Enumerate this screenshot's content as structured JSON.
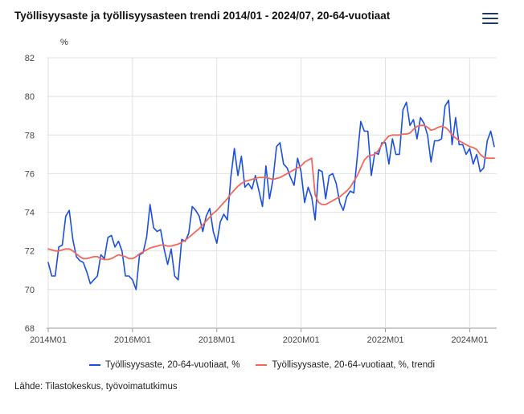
{
  "page": {
    "title": "Työllisyysaste ja työllisyysasteen trendi 2014/01 - 2024/07, 20-64-vuotiaat",
    "menu_icon": "hamburger-menu-icon",
    "source": "Lähde: Tilastokeskus, työvoimatutkimus"
  },
  "chart_data": {
    "type": "line",
    "title": "Työllisyysaste ja työllisyysasteen trendi 2014/01 - 2024/07, 20-64-vuotiaat",
    "ylabel": "%",
    "ylim": [
      68,
      82
    ],
    "yticks": [
      68,
      70,
      72,
      74,
      76,
      78,
      80,
      82
    ],
    "x_start": "2014M01",
    "x_end": "2024M07",
    "xticks": [
      "2014M01",
      "2016M01",
      "2018M01",
      "2020M01",
      "2022M01",
      "2024M01"
    ],
    "grid": true,
    "legend_position": "bottom",
    "series": [
      {
        "name": "Työllisyysaste, 20-64-vuotiaat, %",
        "color": "#1a4fe0",
        "values": [
          71.4,
          70.7,
          70.7,
          72.2,
          72.3,
          73.8,
          74.1,
          72.6,
          71.7,
          71.5,
          71.4,
          70.9,
          70.3,
          70.5,
          70.7,
          71.8,
          71.6,
          72.7,
          72.8,
          72.2,
          72.5,
          72.0,
          70.7,
          70.7,
          70.5,
          70.0,
          71.8,
          71.9,
          72.7,
          74.4,
          73.2,
          73.0,
          73.1,
          72.1,
          71.3,
          72.1,
          70.7,
          70.5,
          72.6,
          72.5,
          72.9,
          74.3,
          74.1,
          73.8,
          73.0,
          73.8,
          74.2,
          73.0,
          72.4,
          73.5,
          73.9,
          73.6,
          75.8,
          77.3,
          75.9,
          76.9,
          75.3,
          75.5,
          75.2,
          75.9,
          75.1,
          74.3,
          76.4,
          74.7,
          75.7,
          77.4,
          77.6,
          76.5,
          76.3,
          75.8,
          75.4,
          76.8,
          76.1,
          74.5,
          75.3,
          74.8,
          73.6,
          76.2,
          76.1,
          74.7,
          75.9,
          76.0,
          75.5,
          74.5,
          74.1,
          74.8,
          75.1,
          75.0,
          76.9,
          78.7,
          78.2,
          78.2,
          75.9,
          77.1,
          77.0,
          77.6,
          77.6,
          76.5,
          77.8,
          77.0,
          77.0,
          79.3,
          79.7,
          78.5,
          78.8,
          77.8,
          78.9,
          78.6,
          78.0,
          76.6,
          77.7,
          77.7,
          77.8,
          79.5,
          79.8,
          77.5,
          78.9,
          77.5,
          77.5,
          77.0,
          77.3,
          76.5,
          77.0,
          76.1,
          76.3,
          77.7,
          78.2,
          77.4
        ]
      },
      {
        "name": "Työllisyysaste, 20-64-vuotiaat, %, trendi",
        "color": "#f2685a",
        "values": [
          72.1,
          72.05,
          72.0,
          72.0,
          72.05,
          72.1,
          72.1,
          72.0,
          71.85,
          71.7,
          71.6,
          71.6,
          71.65,
          71.7,
          71.7,
          71.6,
          71.55,
          71.55,
          71.6,
          71.7,
          71.8,
          71.75,
          71.7,
          71.6,
          71.6,
          71.7,
          71.85,
          71.95,
          72.05,
          72.15,
          72.2,
          72.25,
          72.3,
          72.3,
          72.25,
          72.25,
          72.3,
          72.35,
          72.45,
          72.55,
          72.7,
          72.85,
          73.0,
          73.15,
          73.35,
          73.55,
          73.75,
          73.95,
          74.1,
          74.3,
          74.5,
          74.7,
          74.95,
          75.15,
          75.35,
          75.5,
          75.6,
          75.65,
          75.7,
          75.75,
          75.8,
          75.8,
          75.8,
          75.75,
          75.7,
          75.75,
          75.8,
          75.9,
          76.0,
          76.1,
          76.2,
          76.3,
          76.4,
          76.6,
          76.7,
          76.8,
          74.9,
          74.5,
          74.4,
          74.4,
          74.5,
          74.6,
          74.7,
          74.8,
          74.95,
          75.1,
          75.3,
          75.6,
          75.9,
          76.3,
          76.7,
          76.9,
          76.95,
          77.0,
          77.2,
          77.5,
          77.75,
          77.95,
          78.0,
          78.0,
          78.0,
          78.05,
          78.05,
          78.1,
          78.3,
          78.45,
          78.5,
          78.5,
          78.4,
          78.25,
          78.3,
          78.4,
          78.45,
          78.4,
          78.25,
          78.0,
          77.85,
          77.7,
          77.6,
          77.5,
          77.4,
          77.35,
          77.25,
          77.0,
          76.85,
          76.8,
          76.8,
          76.8
        ]
      }
    ]
  }
}
